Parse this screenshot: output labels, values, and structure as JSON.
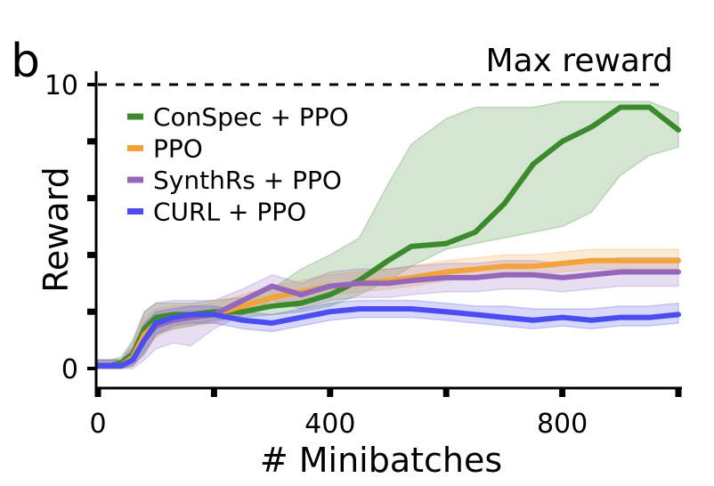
{
  "panel_label": "b",
  "chart_data": {
    "type": "line",
    "title": "Max reward",
    "xlabel": "# Minibatches",
    "ylabel": "Reward",
    "xlim": [
      0,
      1000
    ],
    "ylim": [
      0,
      10
    ],
    "xticks": [
      0,
      400,
      800
    ],
    "xtick_labels": [
      "0",
      "400",
      "800"
    ],
    "yticks": [
      0,
      10
    ],
    "ytick_labels": [
      "0",
      "10"
    ],
    "minor_xticks": [
      200,
      600,
      1000
    ],
    "minor_yticks": [
      2,
      4,
      6,
      8
    ],
    "reference_line": {
      "y": 10,
      "style": "dashed"
    },
    "grid": false,
    "legend_position": "top-left",
    "x": [
      0,
      20,
      40,
      60,
      80,
      100,
      130,
      160,
      200,
      250,
      300,
      350,
      400,
      450,
      500,
      540,
      600,
      650,
      700,
      750,
      800,
      850,
      900,
      950,
      1000
    ],
    "series": [
      {
        "name": "ConSpec + PPO",
        "color": "#3b8a2c",
        "values": [
          0.1,
          0.1,
          0.2,
          0.5,
          1.4,
          1.8,
          1.9,
          1.9,
          2.0,
          2.0,
          2.2,
          2.3,
          2.6,
          3.1,
          3.8,
          4.3,
          4.4,
          4.8,
          5.8,
          7.2,
          8.0,
          8.5,
          9.2,
          9.2,
          8.4
        ],
        "lower": [
          0.0,
          0.0,
          0.0,
          0.1,
          0.6,
          1.2,
          1.4,
          1.5,
          1.7,
          1.8,
          1.9,
          2.0,
          2.2,
          2.6,
          3.1,
          3.6,
          4.2,
          4.4,
          4.6,
          4.8,
          5.0,
          5.5,
          6.8,
          7.5,
          7.8
        ],
        "upper": [
          0.3,
          0.3,
          0.4,
          1.0,
          2.0,
          2.3,
          2.3,
          2.3,
          2.4,
          2.5,
          2.8,
          3.5,
          4.0,
          4.6,
          6.5,
          7.9,
          8.8,
          9.2,
          9.2,
          9.2,
          9.4,
          9.4,
          9.4,
          9.4,
          9.0
        ]
      },
      {
        "name": "PPO",
        "color": "#f2a43a",
        "values": [
          0.1,
          0.1,
          0.1,
          0.4,
          1.2,
          1.6,
          1.8,
          1.8,
          1.9,
          2.2,
          2.5,
          2.7,
          2.9,
          3.0,
          3.1,
          3.2,
          3.4,
          3.5,
          3.6,
          3.6,
          3.7,
          3.8,
          3.8,
          3.8,
          3.8
        ],
        "lower": [
          0.0,
          0.0,
          0.0,
          0.1,
          0.6,
          1.1,
          1.4,
          1.5,
          1.6,
          1.9,
          2.2,
          2.4,
          2.6,
          2.7,
          2.8,
          2.9,
          3.1,
          3.2,
          3.3,
          3.3,
          3.4,
          3.5,
          3.5,
          3.5,
          3.5
        ],
        "upper": [
          0.3,
          0.3,
          0.3,
          0.8,
          1.8,
          2.1,
          2.2,
          2.2,
          2.3,
          2.6,
          2.9,
          3.1,
          3.3,
          3.4,
          3.5,
          3.6,
          3.8,
          3.9,
          4.0,
          4.0,
          4.1,
          4.2,
          4.2,
          4.2,
          4.2
        ]
      },
      {
        "name": "SynthRs + PPO",
        "color": "#9467bd",
        "values": [
          0.1,
          0.1,
          0.1,
          0.3,
          1.0,
          1.5,
          1.7,
          1.8,
          1.9,
          2.4,
          2.9,
          2.6,
          2.9,
          3.0,
          3.0,
          3.1,
          3.2,
          3.2,
          3.3,
          3.3,
          3.2,
          3.3,
          3.4,
          3.4,
          3.4
        ],
        "lower": [
          0.0,
          0.0,
          0.0,
          0.0,
          0.3,
          0.7,
          0.9,
          0.8,
          1.4,
          1.9,
          2.4,
          2.1,
          2.4,
          2.5,
          2.5,
          2.6,
          2.7,
          2.7,
          2.8,
          2.8,
          2.7,
          2.8,
          2.9,
          2.9,
          2.9
        ],
        "upper": [
          0.3,
          0.3,
          0.3,
          0.9,
          2.0,
          2.3,
          2.4,
          2.4,
          2.4,
          2.8,
          3.3,
          3.0,
          3.4,
          3.5,
          3.5,
          3.6,
          3.7,
          3.7,
          3.8,
          3.8,
          3.7,
          3.8,
          3.9,
          3.9,
          3.9
        ]
      },
      {
        "name": "CURL + PPO",
        "color": "#4b4df0",
        "values": [
          0.1,
          0.1,
          0.1,
          0.3,
          1.0,
          1.6,
          1.8,
          1.9,
          1.9,
          1.7,
          1.6,
          1.8,
          2.0,
          2.1,
          2.1,
          2.1,
          2.0,
          1.9,
          1.8,
          1.7,
          1.8,
          1.7,
          1.8,
          1.8,
          1.9
        ],
        "lower": [
          0.0,
          0.0,
          0.0,
          0.1,
          0.5,
          1.2,
          1.5,
          1.6,
          1.6,
          1.4,
          1.3,
          1.5,
          1.7,
          1.8,
          1.8,
          1.8,
          1.7,
          1.6,
          1.5,
          1.4,
          1.5,
          1.4,
          1.5,
          1.5,
          1.6
        ],
        "upper": [
          0.3,
          0.3,
          0.3,
          0.7,
          1.6,
          2.0,
          2.1,
          2.2,
          2.2,
          2.0,
          1.9,
          2.1,
          2.3,
          2.4,
          2.4,
          2.4,
          2.3,
          2.2,
          2.2,
          2.1,
          2.1,
          2.1,
          2.2,
          2.2,
          2.3
        ]
      }
    ]
  }
}
